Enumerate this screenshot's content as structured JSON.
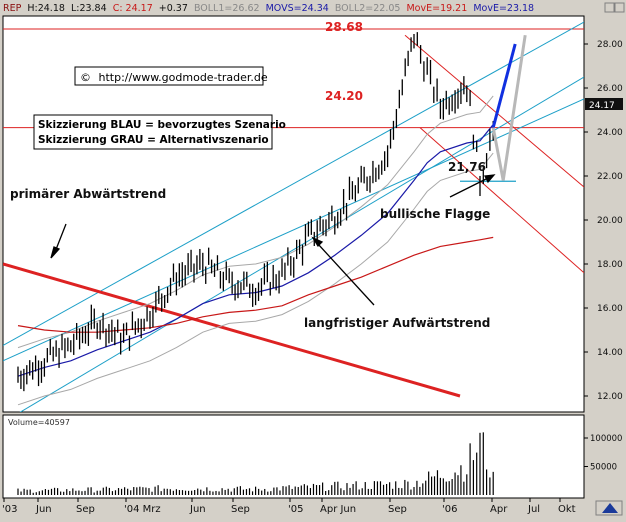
{
  "header": {
    "symbol": "REP",
    "high": "H:24.18",
    "low": "L:23.84",
    "close": "C: 24.17",
    "change": "+0.37",
    "boll1": "BOLL1=26.62",
    "movs": "MOVS=24.34",
    "boll2": "BOLL2=22.05",
    "move1": "MovE=19.21",
    "move2": "MovE=23.18"
  },
  "colors": {
    "price_bg": "#ffffff",
    "frame_bg": "#d4d0c8",
    "bollinger": "#a8a8a8",
    "mov_short": "#1a1aa8",
    "mov_long": "#c81818",
    "channel": "#1ea0c8",
    "resistance": "#dd2222",
    "scenario_blue": "#1030e0",
    "scenario_gray": "#b8b8b8",
    "price_label_bg": "#101010"
  },
  "annotations": {
    "website": "http://www.godmode-trader.de",
    "copyright_symbol": "©",
    "legend_blue": "Skizzierung BLAU = bevorzugtes Szenario",
    "legend_gray": "Skizzierung GRAU = Alternativszenario",
    "level_high": "28.68",
    "level_mid": "24.20",
    "level_low": "21,76",
    "primary_trend": "primärer Abwärtstrend",
    "long_trend": "langfristiger Aufwärtstrend",
    "flag": "bullische Flagge"
  },
  "last_price_label": "24.17",
  "y_axis": {
    "ticks": [
      "12.00",
      "14.00",
      "16.00",
      "18.00",
      "20.00",
      "22.00",
      "24.00",
      "26.00",
      "28.00"
    ]
  },
  "volume_panel": {
    "label": "Volume=40597",
    "ticks": [
      "100000",
      "50000"
    ]
  },
  "x_axis": {
    "labels": [
      "'03",
      "Jun",
      "Sep",
      "'04 Mrz",
      "Jun",
      "Sep",
      "'05",
      "Apr Jun",
      "Sep",
      "'06",
      "Apr",
      "Jul",
      "Okt"
    ]
  },
  "chart_data": {
    "type": "line",
    "title": "",
    "xlabel": "",
    "ylabel": "",
    "ylim": [
      11.5,
      29.5
    ],
    "grid": false,
    "legend": "top",
    "x": [
      "2003-03",
      "2003-05",
      "2003-07",
      "2003-09",
      "2003-11",
      "2004-01",
      "2004-03",
      "2004-05",
      "2004-07",
      "2004-09",
      "2004-11",
      "2005-01",
      "2005-03",
      "2005-05",
      "2005-07",
      "2005-09",
      "2005-10",
      "2005-11",
      "2006-01",
      "2006-02",
      "2006-03"
    ],
    "series": [
      {
        "name": "REP",
        "values": [
          12.9,
          13.6,
          14.3,
          15.4,
          14.6,
          15.8,
          17.4,
          18.0,
          17.2,
          16.9,
          17.5,
          19.2,
          20.2,
          21.6,
          23.0,
          28.4,
          26.7,
          25.2,
          26.2,
          21.8,
          24.17
        ]
      },
      {
        "name": "MOVS",
        "values": [
          12.9,
          13.3,
          13.6,
          14.1,
          14.5,
          14.9,
          15.5,
          16.2,
          16.6,
          16.7,
          17.0,
          17.6,
          18.4,
          19.3,
          20.3,
          21.8,
          22.6,
          23.1,
          23.5,
          23.6,
          24.34
        ]
      },
      {
        "name": "MovE",
        "values": [
          15.2,
          15.0,
          14.9,
          14.9,
          15.0,
          15.1,
          15.3,
          15.6,
          15.8,
          15.9,
          16.1,
          16.6,
          17.0,
          17.4,
          17.9,
          18.4,
          18.6,
          18.8,
          19.0,
          19.1,
          19.21
        ]
      }
    ],
    "volume": {
      "x": [
        "2003-03",
        "2003-09",
        "2004-03",
        "2004-09",
        "2005-03",
        "2005-09",
        "2006-01",
        "2006-02",
        "2006-03"
      ],
      "values": [
        9000,
        11000,
        14000,
        12000,
        18000,
        24000,
        60000,
        110000,
        40597
      ]
    }
  }
}
